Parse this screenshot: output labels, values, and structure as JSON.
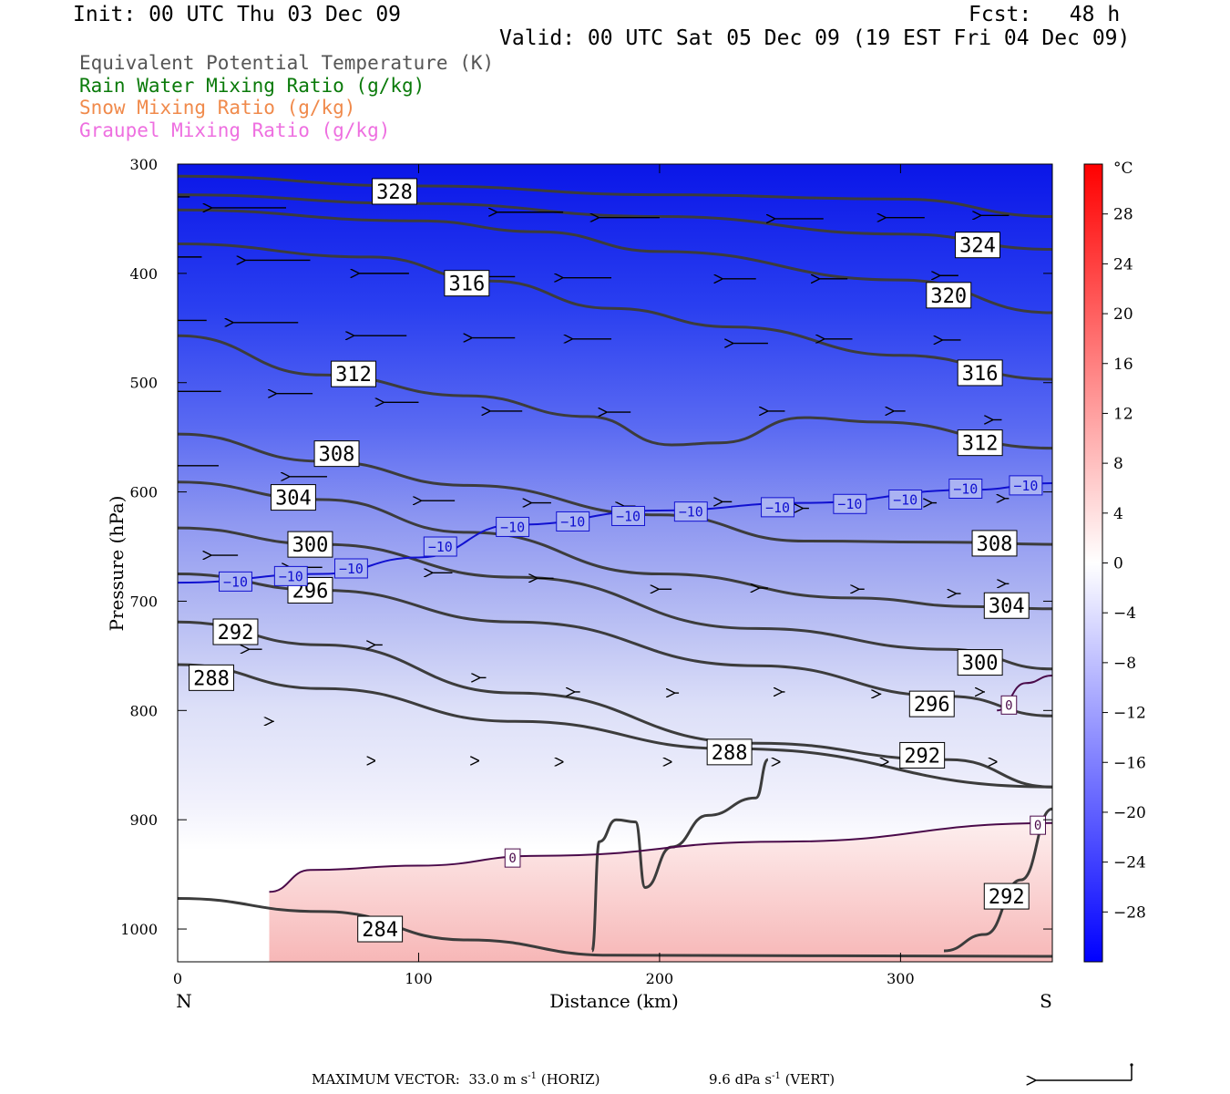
{
  "header": {
    "init": "Init: 00 UTC Thu 03 Dec 09",
    "fcst": "Fcst:   48 h",
    "valid": "Valid: 00 UTC Sat 05 Dec 09 (19 EST Fri 04 Dec 09)"
  },
  "legend": [
    {
      "label": "Equivalent Potential Temperature (K)",
      "color": "#555555"
    },
    {
      "label": "Rain Water Mixing Ratio (g/kg)",
      "color": "#0a7a0a"
    },
    {
      "label": "Snow Mixing Ratio (g/kg)",
      "color": "#f08a4b"
    },
    {
      "label": "Graupel Mixing Ratio (g/kg)",
      "color": "#ee6fe0"
    }
  ],
  "footer": {
    "max_vector_prefix": "MAXIMUM VECTOR:  33.0 m s",
    "max_vector_suffix": " (HORIZ)",
    "vert_prefix": "9.6 dPa s",
    "vert_suffix": " (VERT)",
    "exponent": "-1"
  },
  "chart_data": {
    "type": "cross-section",
    "xlabel": "Distance (km)",
    "ylabel": "Pressure (hPa)",
    "x_range": [
      0,
      363
    ],
    "y_range": [
      300,
      1030
    ],
    "x_ticks": [
      0,
      100,
      200,
      300
    ],
    "y_ticks": [
      300,
      400,
      500,
      600,
      700,
      800,
      900,
      1000
    ],
    "end_labels": {
      "left": "N",
      "right": "S"
    },
    "colorbar": {
      "unit": "°C",
      "range": [
        -32,
        32
      ],
      "tick_labels": [
        "28",
        "24",
        "20",
        "16",
        "12",
        "8",
        "4",
        "0",
        "−4",
        "−8",
        "−12",
        "−16",
        "−20",
        "−24",
        "−28"
      ]
    },
    "theta_e_contours": [
      {
        "label": "328",
        "label_at": [
          90,
          325
        ],
        "points": [
          [
            0,
            311
          ],
          [
            100,
            320
          ],
          [
            200,
            328
          ],
          [
            300,
            332
          ],
          [
            363,
            348
          ]
        ]
      },
      {
        "label": "324",
        "label_at": [
          332,
          374
        ],
        "points": [
          [
            0,
            328
          ],
          [
            100,
            336
          ],
          [
            200,
            348
          ],
          [
            300,
            364
          ],
          [
            363,
            378
          ]
        ]
      },
      {
        "label": "320",
        "label_at": [
          320,
          420
        ],
        "points": [
          [
            0,
            342
          ],
          [
            100,
            352
          ],
          [
            150,
            362
          ],
          [
            200,
            380
          ],
          [
            300,
            406
          ],
          [
            363,
            436
          ]
        ]
      },
      {
        "label": "316",
        "label_at": [
          120,
          409
        ],
        "points": [
          [
            0,
            373
          ],
          [
            80,
            385
          ],
          [
            130,
            407
          ],
          [
            180,
            432
          ],
          [
            230,
            449
          ],
          [
            300,
            475
          ],
          [
            363,
            497
          ]
        ]
      },
      {
        "label": "316",
        "label_at": [
          333,
          491
        ],
        "points": []
      },
      {
        "label": "312",
        "label_at": [
          73,
          492
        ],
        "points": [
          [
            0,
            457
          ],
          [
            60,
            493
          ],
          [
            120,
            512
          ],
          [
            170,
            531
          ],
          [
            205,
            557
          ],
          [
            225,
            555
          ],
          [
            260,
            532
          ],
          [
            290,
            536
          ],
          [
            363,
            560
          ]
        ]
      },
      {
        "label": "312",
        "label_at": [
          333,
          555
        ],
        "points": []
      },
      {
        "label": "308",
        "label_at": [
          66,
          565
        ],
        "points": [
          [
            0,
            547
          ],
          [
            60,
            572
          ],
          [
            120,
            594
          ],
          [
            200,
            621
          ],
          [
            260,
            645
          ],
          [
            320,
            646
          ],
          [
            363,
            648
          ]
        ]
      },
      {
        "label": "308",
        "label_at": [
          339,
          647
        ],
        "points": []
      },
      {
        "label": "304",
        "label_at": [
          48,
          605
        ],
        "points": [
          [
            0,
            591
          ],
          [
            60,
            607
          ],
          [
            120,
            637
          ],
          [
            200,
            675
          ],
          [
            280,
            697
          ],
          [
            330,
            705
          ],
          [
            363,
            707
          ]
        ]
      },
      {
        "label": "304",
        "label_at": [
          344,
          704
        ],
        "points": []
      },
      {
        "label": "300",
        "label_at": [
          55,
          648
        ],
        "points": [
          [
            0,
            633
          ],
          [
            60,
            648
          ],
          [
            140,
            678
          ],
          [
            240,
            725
          ],
          [
            320,
            744
          ],
          [
            363,
            762
          ]
        ]
      },
      {
        "label": "300",
        "label_at": [
          333,
          756
        ],
        "points": []
      },
      {
        "label": "296",
        "label_at": [
          55,
          690
        ],
        "points": [
          [
            0,
            675
          ],
          [
            60,
            690
          ],
          [
            140,
            719
          ],
          [
            240,
            759
          ],
          [
            320,
            787
          ],
          [
            363,
            805
          ]
        ]
      },
      {
        "label": "296",
        "label_at": [
          313,
          794
        ],
        "points": []
      },
      {
        "label": "292",
        "label_at": [
          24,
          728
        ],
        "points": [
          [
            0,
            719
          ],
          [
            60,
            740
          ],
          [
            140,
            784
          ],
          [
            240,
            830
          ],
          [
            320,
            845
          ],
          [
            363,
            870
          ]
        ]
      },
      {
        "label": "292",
        "label_at": [
          309,
          841
        ],
        "points": []
      },
      {
        "label": "292",
        "label_at": [
          344,
          970
        ],
        "points": [
          [
            318,
            1020
          ],
          [
            335,
            1005
          ],
          [
            350,
            955
          ],
          [
            363,
            890
          ]
        ]
      },
      {
        "label": "288",
        "label_at": [
          14,
          770
        ],
        "points": [
          [
            0,
            758
          ],
          [
            60,
            780
          ],
          [
            140,
            810
          ],
          [
            230,
            835
          ],
          [
            363,
            870
          ]
        ]
      },
      {
        "label": "288",
        "label_at": [
          229,
          838
        ],
        "points": [
          [
            245,
            845
          ],
          [
            240,
            880
          ],
          [
            220,
            896
          ],
          [
            205,
            925
          ],
          [
            194,
            962
          ],
          [
            190,
            902
          ],
          [
            182,
            900
          ],
          [
            175,
            920
          ],
          [
            172,
            1020
          ]
        ]
      },
      {
        "label": "284",
        "label_at": [
          84,
          1000
        ],
        "points": [
          [
            0,
            972
          ],
          [
            60,
            984
          ],
          [
            120,
            1010
          ],
          [
            180,
            1024
          ],
          [
            363,
            1025
          ]
        ]
      }
    ],
    "zero_c_lines": [
      {
        "label": "0",
        "label_at": [
          139,
          935
        ],
        "points": [
          [
            38,
            966
          ],
          [
            55,
            946
          ],
          [
            100,
            942
          ],
          [
            150,
            933
          ],
          [
            250,
            920
          ],
          [
            363,
            903
          ]
        ]
      },
      {
        "label": "0",
        "label_at": [
          345,
          795
        ],
        "points": [
          [
            340,
            800
          ],
          [
            352,
            775
          ],
          [
            363,
            768
          ]
        ]
      },
      {
        "label": "0",
        "label_at": [
          357,
          905
        ],
        "points": []
      }
    ],
    "minus10_line": {
      "label": "−10",
      "label_at": [
        [
          24,
          682
        ],
        [
          47,
          677
        ],
        [
          72,
          670
        ],
        [
          109,
          650
        ],
        [
          139,
          632
        ],
        [
          164,
          627
        ],
        [
          187,
          622
        ],
        [
          213,
          618
        ],
        [
          249,
          614
        ],
        [
          279,
          611
        ],
        [
          302,
          607
        ],
        [
          327,
          597
        ],
        [
          352,
          594
        ]
      ],
      "points": [
        [
          0,
          683
        ],
        [
          60,
          675
        ],
        [
          100,
          660
        ],
        [
          140,
          630
        ],
        [
          200,
          617
        ],
        [
          260,
          610
        ],
        [
          330,
          598
        ],
        [
          363,
          592
        ]
      ]
    },
    "wind_vectors": [
      [
        5,
        330,
        -140
      ],
      [
        45,
        340,
        -110
      ],
      [
        160,
        344,
        -98
      ],
      [
        200,
        349,
        -90
      ],
      [
        268,
        350,
        -72
      ],
      [
        310,
        349,
        -58
      ],
      [
        345,
        347,
        -42
      ],
      [
        10,
        385,
        -108
      ],
      [
        55,
        388,
        -96
      ],
      [
        96,
        400,
        -74
      ],
      [
        140,
        403,
        -80
      ],
      [
        180,
        404,
        -72
      ],
      [
        240,
        405,
        -50
      ],
      [
        278,
        405,
        -42
      ],
      [
        324,
        402,
        -28
      ],
      [
        12,
        443,
        -106
      ],
      [
        50,
        445,
        -96
      ],
      [
        95,
        457,
        -78
      ],
      [
        140,
        459,
        -64
      ],
      [
        180,
        460,
        -58
      ],
      [
        245,
        464,
        -52
      ],
      [
        280,
        460,
        -42
      ],
      [
        325,
        461,
        -28
      ],
      [
        18,
        508,
        -68
      ],
      [
        56,
        510,
        -54
      ],
      [
        100,
        518,
        -52
      ],
      [
        143,
        526,
        -48
      ],
      [
        188,
        527,
        -36
      ],
      [
        252,
        526,
        -26
      ],
      [
        302,
        526,
        -18
      ],
      [
        342,
        534,
        -14
      ],
      [
        17,
        576,
        -60
      ],
      [
        62,
        586,
        -56
      ],
      [
        115,
        608,
        -50
      ],
      [
        155,
        610,
        -30
      ],
      [
        190,
        613,
        -18
      ],
      [
        230,
        609,
        -15
      ],
      [
        262,
        615,
        -10
      ],
      [
        315,
        610,
        -8
      ],
      [
        345,
        606,
        -7
      ],
      [
        25,
        658,
        -40
      ],
      [
        60,
        669,
        -48
      ],
      [
        114,
        674,
        -30
      ],
      [
        156,
        679,
        -25
      ],
      [
        205,
        689,
        -20
      ],
      [
        245,
        688,
        -14
      ],
      [
        285,
        689,
        -9
      ],
      [
        325,
        693,
        -8
      ],
      [
        345,
        684,
        -6
      ],
      [
        35,
        744,
        -20
      ],
      [
        85,
        740,
        -12
      ],
      [
        128,
        770,
        -10
      ],
      [
        167,
        783,
        -9
      ],
      [
        208,
        784,
        -7
      ],
      [
        252,
        783,
        -5
      ],
      [
        292,
        785,
        -3
      ],
      [
        335,
        783,
        -3
      ],
      [
        40,
        810,
        -3
      ],
      [
        82,
        846,
        -1
      ],
      [
        125,
        846,
        -1
      ],
      [
        160,
        847,
        -1
      ],
      [
        205,
        847,
        -1
      ],
      [
        250,
        847,
        -1
      ],
      [
        295,
        847,
        -1
      ],
      [
        340,
        847,
        -1
      ]
    ]
  }
}
